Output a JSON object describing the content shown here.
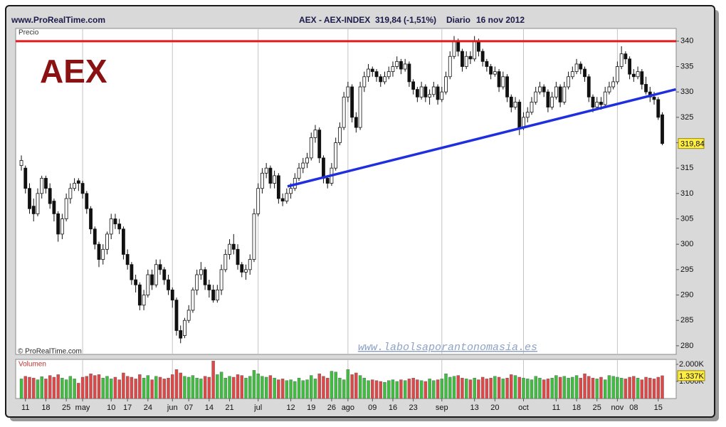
{
  "chart_data": {
    "type": "candlestick",
    "site": "www.ProRealTime.com",
    "title": "AEX - AEX-INDEX",
    "quote": "319,84 (-1,51%)",
    "period": "Diario",
    "date": "16 nov 2012",
    "price_label": "Precio",
    "logo": "AEX",
    "copyright": "© ProRealTime.com",
    "watermark": "www.labolsaporantonomasia.es",
    "up_color": "#ffffff",
    "down_color": "#111111",
    "grid": true,
    "xlim": [
      -1.4,
      160.4
    ],
    "ylim": [
      278.3,
      342.5
    ],
    "yticks": [
      280,
      285,
      290,
      295,
      300,
      305,
      310,
      315,
      320,
      325,
      330,
      335,
      340
    ],
    "xticks": [
      {
        "value": 1,
        "label": "11"
      },
      {
        "value": 6,
        "label": "18"
      },
      {
        "value": 11,
        "label": "25"
      },
      {
        "value": 15,
        "label": "may"
      },
      {
        "value": 22,
        "label": "10"
      },
      {
        "value": 26,
        "label": "17"
      },
      {
        "value": 31,
        "label": "24"
      },
      {
        "value": 37,
        "label": "jun"
      },
      {
        "value": 41,
        "label": "07"
      },
      {
        "value": 46,
        "label": "14"
      },
      {
        "value": 51,
        "label": "21"
      },
      {
        "value": 58,
        "label": "jul"
      },
      {
        "value": 66,
        "label": "12"
      },
      {
        "value": 71,
        "label": "19"
      },
      {
        "value": 76,
        "label": "26"
      },
      {
        "value": 80,
        "label": "ago"
      },
      {
        "value": 86,
        "label": "09"
      },
      {
        "value": 91,
        "label": "16"
      },
      {
        "value": 96,
        "label": "23"
      },
      {
        "value": 103,
        "label": "sep"
      },
      {
        "value": 111,
        "label": "13"
      },
      {
        "value": 116,
        "label": "20"
      },
      {
        "value": 123,
        "label": "oct"
      },
      {
        "value": 131,
        "label": "11"
      },
      {
        "value": 136,
        "label": "18"
      },
      {
        "value": 141,
        "label": "25"
      },
      {
        "value": 146,
        "label": "nov"
      },
      {
        "value": 150,
        "label": "08"
      },
      {
        "value": 156,
        "label": "15"
      }
    ],
    "last_value_label": "319,84",
    "annotations": [
      {
        "kind": "hline",
        "y": 340,
        "color": "#e31b1b"
      },
      {
        "kind": "segment",
        "x": [
          65.2,
          160.3
        ],
        "y": [
          311.4,
          330.5
        ],
        "color": "#1f2fe0"
      }
    ],
    "candles": [
      [
        315.5,
        317.5,
        314.5,
        316.5
      ],
      [
        315,
        315.5,
        310,
        311
      ],
      [
        311,
        312,
        306,
        307
      ],
      [
        307.5,
        309,
        304.5,
        306
      ],
      [
        306,
        311,
        305.5,
        310
      ],
      [
        310,
        313.5,
        309,
        313
      ],
      [
        313,
        313.5,
        310,
        311
      ],
      [
        311,
        312,
        307,
        308
      ],
      [
        308.5,
        309,
        304.5,
        306
      ],
      [
        306,
        306.5,
        300.5,
        302
      ],
      [
        302,
        306,
        301,
        305
      ],
      [
        305,
        310,
        304.5,
        309
      ],
      [
        309,
        312,
        308,
        311
      ],
      [
        311,
        313,
        310.5,
        312
      ],
      [
        312.5,
        313,
        310.5,
        312
      ],
      [
        312,
        312.5,
        309,
        310
      ],
      [
        310,
        310.5,
        306,
        307
      ],
      [
        307,
        307.5,
        302,
        303
      ],
      [
        303,
        303.5,
        299,
        300
      ],
      [
        300,
        300.5,
        295.5,
        297
      ],
      [
        297,
        300,
        296,
        299
      ],
      [
        299,
        302.5,
        298,
        302
      ],
      [
        302,
        306,
        301,
        305
      ],
      [
        305,
        306,
        303,
        304
      ],
      [
        304,
        305,
        302,
        303
      ],
      [
        303,
        303.5,
        297,
        298
      ],
      [
        298,
        299,
        295,
        296
      ],
      [
        296,
        296.5,
        292,
        293
      ],
      [
        293,
        294,
        290.5,
        292
      ],
      [
        292,
        292.5,
        287,
        288
      ],
      [
        288,
        291,
        287,
        290
      ],
      [
        290,
        295,
        289.5,
        294
      ],
      [
        294,
        295,
        291,
        292
      ],
      [
        292,
        297,
        291.5,
        296
      ],
      [
        296,
        297,
        294,
        295
      ],
      [
        295,
        295.5,
        292,
        293
      ],
      [
        293,
        294,
        290,
        291
      ],
      [
        291,
        291.5,
        287.5,
        289
      ],
      [
        289,
        289.5,
        282,
        283
      ],
      [
        283,
        284,
        280.5,
        281.5
      ],
      [
        282,
        285.5,
        281.5,
        285
      ],
      [
        285,
        288,
        284.5,
        287
      ],
      [
        287,
        291.5,
        286.5,
        291
      ],
      [
        291,
        295,
        290,
        294
      ],
      [
        294,
        296.5,
        293,
        295
      ],
      [
        295,
        295.5,
        291,
        292
      ],
      [
        292,
        293,
        289.5,
        291
      ],
      [
        291,
        292,
        288.5,
        289
      ],
      [
        289,
        292,
        288.5,
        291
      ],
      [
        291,
        296,
        290,
        295
      ],
      [
        295,
        299,
        294.5,
        298
      ],
      [
        298,
        301,
        297,
        300
      ],
      [
        300,
        302,
        298,
        299
      ],
      [
        299,
        300,
        295,
        296
      ],
      [
        296,
        296.5,
        293.5,
        294.5
      ],
      [
        294.5,
        296,
        293,
        295
      ],
      [
        295,
        298,
        294,
        297
      ],
      [
        297,
        307,
        296.5,
        306
      ],
      [
        306,
        312,
        305.5,
        311
      ],
      [
        311,
        315,
        310,
        314
      ],
      [
        314,
        316,
        313,
        315
      ],
      [
        315,
        315.5,
        311,
        312
      ],
      [
        312,
        314.5,
        311,
        313.5
      ],
      [
        313.5,
        314,
        308,
        309
      ],
      [
        309,
        310,
        307.5,
        308.5
      ],
      [
        308.5,
        311,
        308,
        310
      ],
      [
        310,
        312,
        309,
        311
      ],
      [
        311,
        314,
        310.5,
        313
      ],
      [
        313,
        316,
        312.5,
        315
      ],
      [
        315,
        317,
        314,
        316
      ],
      [
        316,
        318,
        315,
        317
      ],
      [
        317,
        322,
        316.5,
        321
      ],
      [
        321,
        323.5,
        320,
        322.5
      ],
      [
        322.5,
        323,
        316,
        317
      ],
      [
        317,
        317.5,
        312,
        313
      ],
      [
        313,
        313.5,
        311,
        312
      ],
      [
        312,
        316,
        311.5,
        315
      ],
      [
        315,
        321,
        314.5,
        320
      ],
      [
        320,
        324,
        319.5,
        323
      ],
      [
        323,
        330,
        322.5,
        329
      ],
      [
        329,
        332,
        328,
        331
      ],
      [
        331,
        331.5,
        324,
        325
      ],
      [
        325,
        326,
        322,
        323
      ],
      [
        323,
        332,
        322.5,
        331
      ],
      [
        331,
        334,
        330,
        333
      ],
      [
        333,
        335.5,
        332,
        334.5
      ],
      [
        334.5,
        335,
        333,
        334
      ],
      [
        334,
        334.5,
        332,
        333
      ],
      [
        333,
        333.5,
        331,
        332
      ],
      [
        332,
        334,
        331.5,
        333
      ],
      [
        333,
        335,
        332.5,
        334
      ],
      [
        334,
        336,
        333,
        335
      ],
      [
        335,
        337,
        334.5,
        336
      ],
      [
        336,
        336.5,
        333.5,
        334.5
      ],
      [
        334.5,
        336.5,
        334,
        335.5
      ],
      [
        335.5,
        336,
        331,
        332
      ],
      [
        332,
        332.5,
        329.5,
        330.5
      ],
      [
        330.5,
        331,
        328,
        329
      ],
      [
        329,
        332,
        328.5,
        331
      ],
      [
        331,
        331.5,
        328,
        329
      ],
      [
        329,
        330.5,
        327.5,
        329.5
      ],
      [
        329.5,
        332,
        329,
        331
      ],
      [
        331,
        331.5,
        327.5,
        328.5
      ],
      [
        328.5,
        331,
        328,
        330
      ],
      [
        330,
        334,
        329.5,
        333
      ],
      [
        333,
        338,
        332.5,
        337
      ],
      [
        337,
        341,
        336.5,
        340
      ],
      [
        340,
        340.5,
        337,
        338
      ],
      [
        338,
        338.5,
        334,
        335
      ],
      [
        335,
        338,
        334.5,
        337
      ],
      [
        337,
        338,
        335.5,
        336.5
      ],
      [
        336.5,
        341,
        336,
        340
      ],
      [
        340,
        340.5,
        337,
        338
      ],
      [
        338,
        338.5,
        335,
        336
      ],
      [
        336,
        336.5,
        334,
        335
      ],
      [
        335,
        335.5,
        332.5,
        333.5
      ],
      [
        333.5,
        335,
        333,
        334
      ],
      [
        334,
        334.5,
        330,
        331
      ],
      [
        331,
        334,
        330.5,
        333
      ],
      [
        333,
        333.5,
        328,
        329
      ],
      [
        329,
        329.5,
        326,
        327
      ],
      [
        327,
        329,
        326.5,
        328
      ],
      [
        328,
        328.5,
        321.5,
        323
      ],
      [
        323,
        326,
        322.5,
        325
      ],
      [
        325,
        327,
        324,
        326
      ],
      [
        326,
        329,
        325.5,
        328
      ],
      [
        328,
        331,
        327.5,
        330
      ],
      [
        330,
        332,
        329.5,
        331
      ],
      [
        331,
        331.5,
        329,
        330
      ],
      [
        330,
        330.5,
        326,
        327
      ],
      [
        327,
        330,
        326.5,
        329
      ],
      [
        329,
        332,
        328.5,
        331
      ],
      [
        331,
        331.5,
        327,
        328
      ],
      [
        328,
        332,
        327.5,
        331
      ],
      [
        331,
        334,
        330.5,
        333
      ],
      [
        333,
        335,
        332.5,
        334
      ],
      [
        334,
        336.5,
        333.5,
        335.5
      ],
      [
        335.5,
        336,
        333.5,
        334.5
      ],
      [
        334.5,
        335,
        332,
        333
      ],
      [
        333,
        333.5,
        328,
        329
      ],
      [
        329,
        329.5,
        326,
        327
      ],
      [
        327,
        329,
        326.5,
        328
      ],
      [
        328,
        329,
        326.5,
        327.5
      ],
      [
        327.5,
        331,
        327,
        330
      ],
      [
        330,
        332,
        329.5,
        331
      ],
      [
        331,
        333,
        330.5,
        332
      ],
      [
        332,
        336,
        331.5,
        335
      ],
      [
        335,
        339,
        334.5,
        337.5
      ],
      [
        337.5,
        338,
        335.5,
        336.5
      ],
      [
        336.5,
        337,
        332.5,
        333.5
      ],
      [
        333.5,
        334.5,
        332,
        333
      ],
      [
        333,
        335,
        332.5,
        334
      ],
      [
        334,
        334.5,
        330.5,
        331.5
      ],
      [
        331.5,
        333,
        329.5,
        330
      ],
      [
        330,
        331,
        328,
        329
      ],
      [
        329,
        330,
        327.5,
        328.5
      ],
      [
        328.5,
        329,
        324.5,
        325
      ],
      [
        325.5,
        326,
        319.5,
        319.84
      ]
    ],
    "volume": {
      "label": "Volumen",
      "up_color": "#3fbf3f",
      "down_color": "#e04848",
      "ylim": [
        0,
        2290
      ],
      "yticks": [
        {
          "value": 2000,
          "label": "2.000K"
        },
        {
          "value": 1000,
          "label": "1.000K"
        }
      ],
      "last_value_label": "1.337K",
      "values": [
        1150,
        1300,
        1250,
        1200,
        1100,
        1280,
        1150,
        1350,
        1250,
        1400,
        1200,
        1100,
        1300,
        1150,
        900,
        1250,
        1300,
        1450,
        1350,
        1400,
        1200,
        1300,
        1150,
        1250,
        1100,
        1500,
        1300,
        1250,
        1150,
        1400,
        1200,
        1350,
        1100,
        1300,
        1250,
        1150,
        1200,
        1400,
        1700,
        1500,
        1300,
        1250,
        1350,
        1200,
        1150,
        1300,
        1250,
        2200,
        1400,
        1550,
        1200,
        1300,
        1250,
        1400,
        1350,
        1200,
        1300,
        1650,
        1450,
        1300,
        1250,
        1350,
        1200,
        1100,
        1150,
        1050,
        1100,
        1000,
        1200,
        1050,
        1100,
        1350,
        1150,
        1450,
        1300,
        1200,
        1600,
        1550,
        1200,
        1100,
        1700,
        1400,
        1500,
        1350,
        1200,
        1050,
        1100,
        1050,
        1000,
        950,
        1050,
        1100,
        1000,
        1100,
        1050,
        1150,
        1200,
        1100,
        1050,
        1000,
        1150,
        1050,
        1100,
        1150,
        1450,
        1250,
        1300,
        1350,
        1200,
        1150,
        1100,
        1200,
        1100,
        1250,
        1150,
        1200,
        1300,
        1250,
        1150,
        1200,
        1400,
        1350,
        1250,
        1200,
        1150,
        1100,
        1300,
        1200,
        1100,
        1150,
        1200,
        1350,
        1250,
        1300,
        1200,
        1250,
        1350,
        1200,
        1450,
        1300,
        1200,
        1150,
        1250,
        1100,
        1350,
        1300,
        1250,
        1200,
        1150,
        1250,
        1300,
        1200,
        1100,
        1250,
        1200,
        1150,
        1250,
        1337
      ]
    }
  }
}
